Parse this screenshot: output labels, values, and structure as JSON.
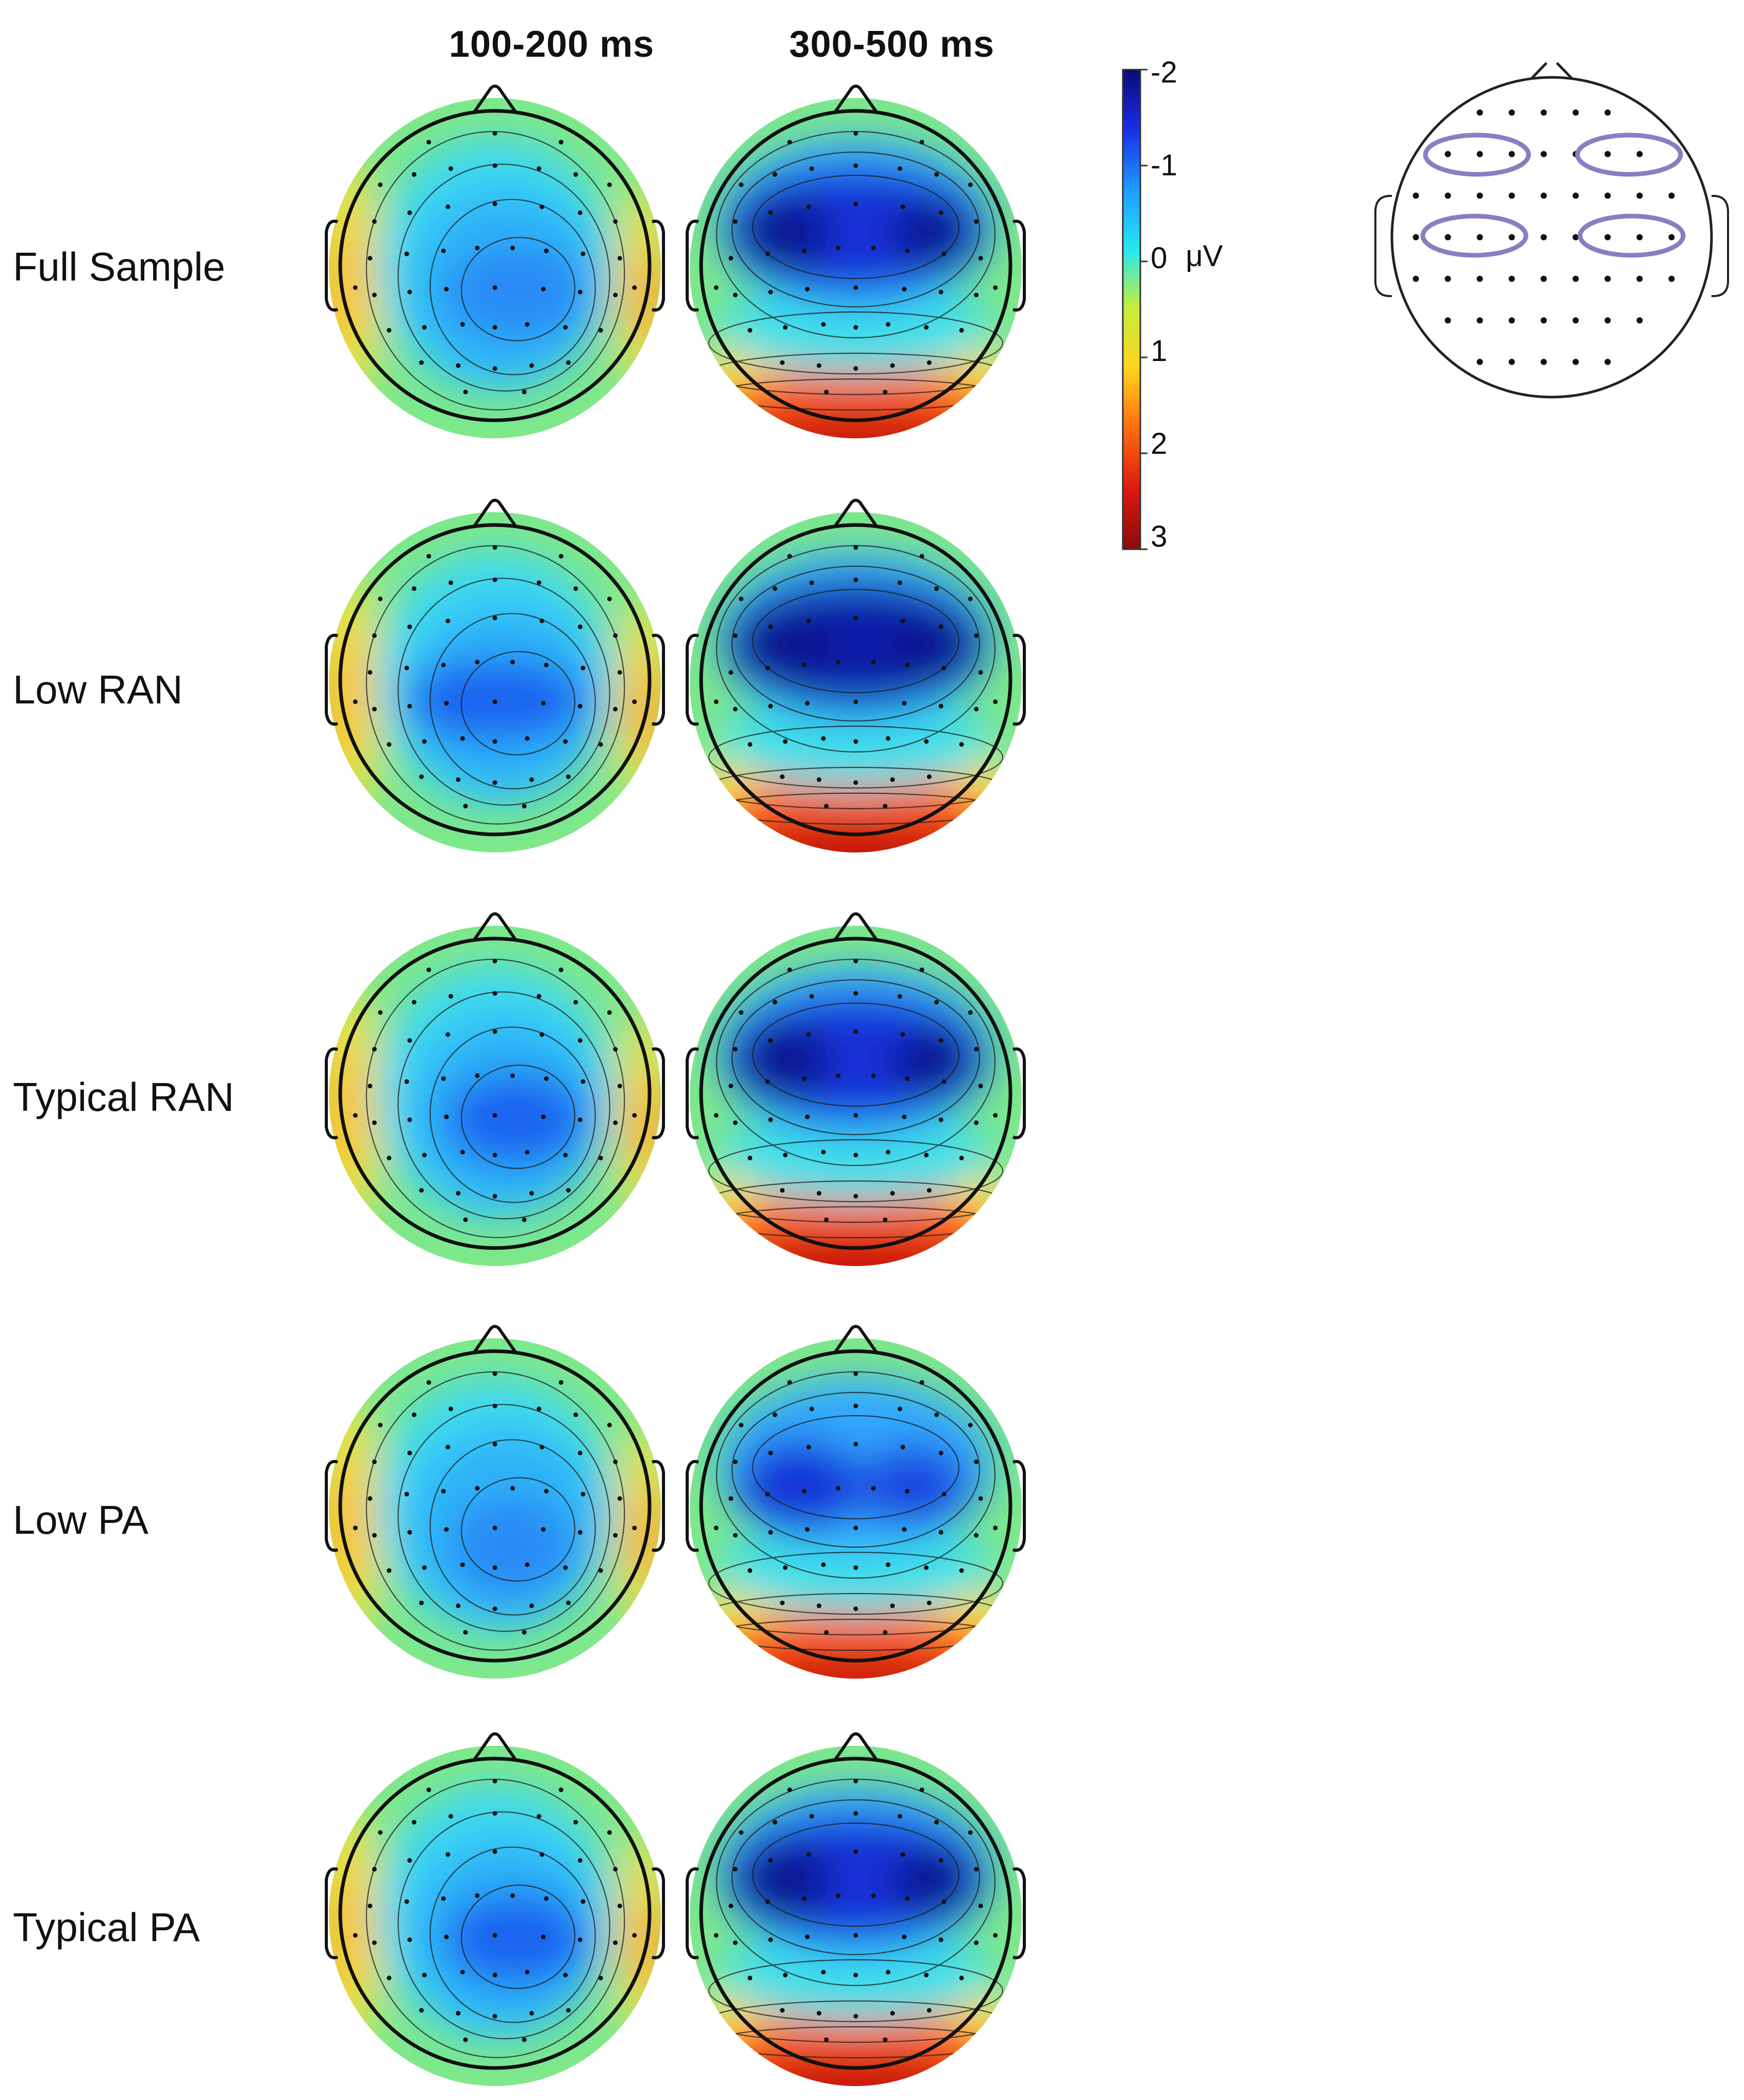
{
  "columns": [
    "100-200  ms",
    "300-500  ms"
  ],
  "rows": [
    {
      "label": "Full Sample",
      "early": {
        "shape": "central",
        "depth": 0.65,
        "back": 0.55
      },
      "late": {
        "shape": "frontal",
        "depth": 0.95,
        "back": 0.85
      }
    },
    {
      "label": "Low RAN",
      "early": {
        "shape": "wide",
        "depth": 0.7,
        "back": 0.65
      },
      "late": {
        "shape": "frontal",
        "depth": 1.0,
        "back": 1.0
      }
    },
    {
      "label": "Typical RAN",
      "early": {
        "shape": "central",
        "depth": 0.68,
        "back": 0.6
      },
      "late": {
        "shape": "frontal",
        "depth": 0.92,
        "back": 0.95
      }
    },
    {
      "label": "Low PA",
      "early": {
        "shape": "diffuse",
        "depth": 0.5,
        "back": 0.55
      },
      "late": {
        "shape": "split",
        "depth": 0.85,
        "back": 0.8
      }
    },
    {
      "label": "Typical PA",
      "early": {
        "shape": "central",
        "depth": 0.7,
        "back": 0.6
      },
      "late": {
        "shape": "frontal",
        "depth": 0.95,
        "back": 0.95
      }
    }
  ],
  "colorbar": {
    "ticks": [
      "-2",
      "-1",
      "0",
      "1",
      "2",
      "3"
    ],
    "tick_values": [
      -2,
      -1,
      0,
      1,
      2,
      3
    ],
    "unit": "μV",
    "colors": [
      "#0a0a78",
      "#1a2ee6",
      "#1e9bff",
      "#26e8f0",
      "#c8ee3a",
      "#ffd21e",
      "#ff6a10",
      "#dc1a12",
      "#8a0a0a"
    ]
  },
  "montage": {
    "roi_color": "#8e7cc3",
    "roi_count": 4
  }
}
